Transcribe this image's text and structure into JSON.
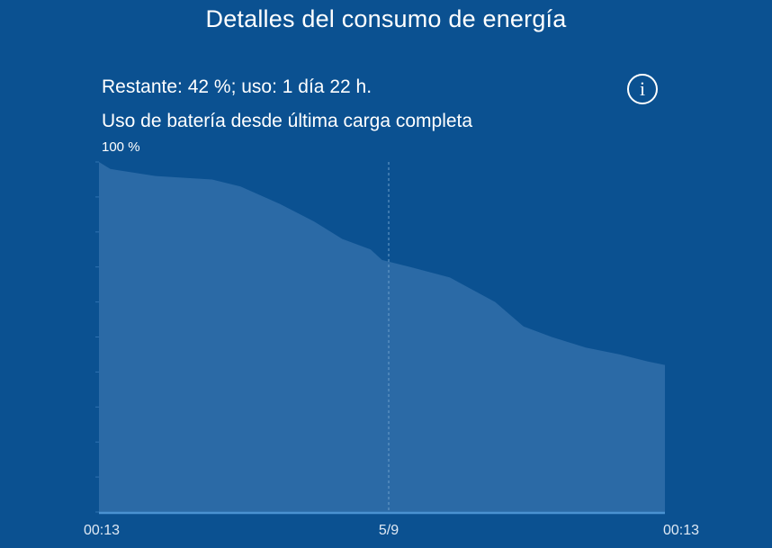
{
  "header": {
    "title": "Detalles del consumo de energía"
  },
  "summary": {
    "remaining_text": "Restante: 42 %; uso: 1 día 22 h.",
    "info_icon": "info-icon",
    "info_glyph": "i"
  },
  "chart_section": {
    "subtitle": "Uso de batería desde última carga completa",
    "y_max_label": "100 %"
  },
  "chart_data": {
    "type": "area",
    "title": "Uso de batería desde última carga completa",
    "xlabel": "",
    "ylabel": "",
    "x_tick_labels": [
      "00:13",
      "5/9",
      "00:13"
    ],
    "y_tick_labels": [
      "100 %"
    ],
    "ylim": [
      0,
      100
    ],
    "grid": false,
    "legend": "none",
    "series": [
      {
        "x": [
          0,
          0.02,
          0.1,
          0.2,
          0.25,
          0.32,
          0.38,
          0.43,
          0.48,
          0.5,
          0.55,
          0.62,
          0.7,
          0.75,
          0.8,
          0.86,
          0.92,
          0.97,
          1.0
        ],
        "values": [
          100,
          98,
          96,
          95,
          93,
          88,
          83,
          78,
          75,
          72,
          70,
          67,
          60,
          53,
          50,
          47,
          45,
          43,
          42
        ]
      }
    ],
    "colors": {
      "background": "#0b5191",
      "area_fill": "#2b6aa6",
      "baseline": "#4a92d1",
      "divider": "#6e9fcb",
      "tick": "#2f72b1"
    }
  },
  "x_axis": {
    "start": "00:13",
    "middle": "5/9",
    "end": "00:13"
  }
}
